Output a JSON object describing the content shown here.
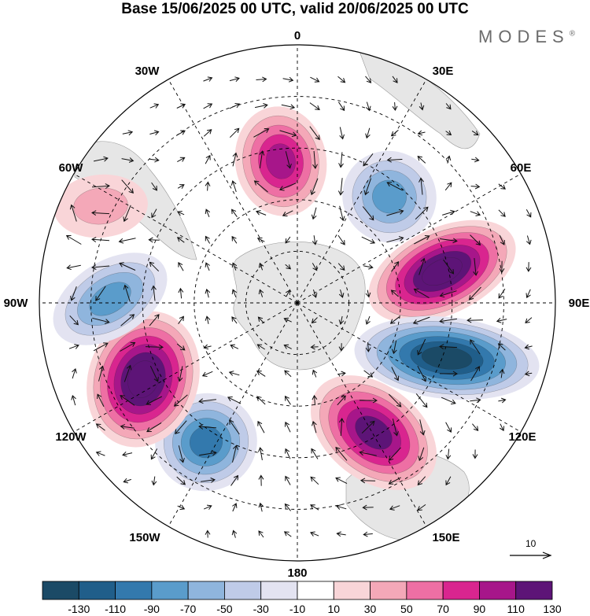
{
  "header": {
    "title": "Base 15/06/2025 00 UTC, valid 20/06/2025 00 UTC",
    "brand": "MODES",
    "brand_mark": "®"
  },
  "map": {
    "projection": "south-polar-stereographic",
    "longitude_labels": [
      "0",
      "30E",
      "60E",
      "90E",
      "120E",
      "150E",
      "180",
      "150W",
      "120W",
      "90W",
      "60W",
      "30W"
    ],
    "reference_vector_label": "10",
    "anomaly_features": [
      {
        "sign": "positive",
        "peak": 90,
        "near_lon": "10W"
      },
      {
        "sign": "negative",
        "peak": -70,
        "near_lon": "40E"
      },
      {
        "sign": "positive",
        "peak": 130,
        "near_lon": "70E"
      },
      {
        "sign": "negative",
        "peak": -130,
        "near_lon": "110E"
      },
      {
        "sign": "positive",
        "peak": 110,
        "near_lon": "150E"
      },
      {
        "sign": "negative",
        "peak": -90,
        "near_lon": "150W"
      },
      {
        "sign": "positive",
        "peak": 130,
        "near_lon": "120W"
      },
      {
        "sign": "negative",
        "peak": -70,
        "near_lon": "90W"
      },
      {
        "sign": "positive",
        "peak": 30,
        "near_lon": "60W"
      }
    ]
  },
  "colorbar": {
    "tick_labels": [
      "-130",
      "-110",
      "-90",
      "-70",
      "-50",
      "-30",
      "-10",
      "10",
      "30",
      "50",
      "70",
      "90",
      "110",
      "130"
    ],
    "colors": [
      "#1b4a66",
      "#205e8a",
      "#3379ad",
      "#5a9ccb",
      "#8fb5dd",
      "#bfcbe8",
      "#e3e3f1",
      "#ffffff",
      "#f9d5d8",
      "#f4a8b8",
      "#ee6fa4",
      "#d9258f",
      "#a7168a",
      "#5d1477"
    ]
  }
}
